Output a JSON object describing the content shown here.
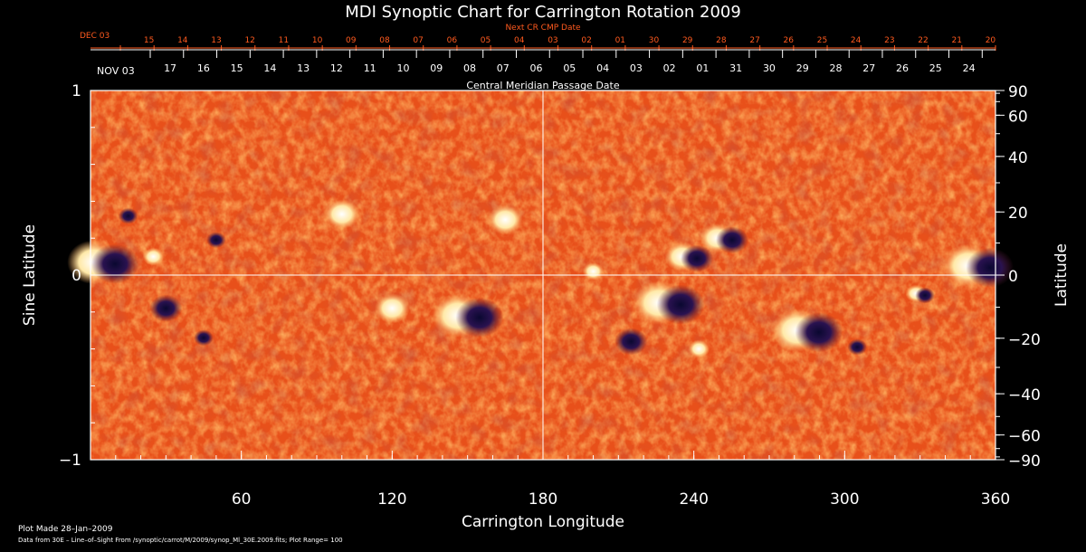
{
  "colors": {
    "background": "#000000",
    "axis": "#ffffff",
    "top_axis": "#ff5a1e",
    "field": "#e8501a"
  },
  "chart_data": {
    "type": "heatmap",
    "title": "MDI Synoptic Chart for Carrington Rotation 2009",
    "xlabel": "Carrington Longitude",
    "ylabel_left": "Sine Latitude",
    "ylabel_right": "Latitude",
    "xlim": [
      0,
      360
    ],
    "ylim": [
      -1,
      1
    ],
    "x_ticks": [
      60,
      120,
      180,
      240,
      300,
      360
    ],
    "y_ticks_left": [
      {
        "value": 1,
        "label": "1"
      },
      {
        "value": 0,
        "label": "0"
      },
      {
        "value": -1,
        "label": "−1"
      }
    ],
    "y_ticks_right": [
      90,
      60,
      40,
      20,
      0,
      -20,
      -40,
      -60,
      -90
    ],
    "y_right_labels": {
      "90": "90",
      "60": "60",
      "40": "40",
      "20": "20",
      "0": "0",
      "-20": "−20",
      "-40": "−40",
      "-60": "−60",
      "-90": "−90"
    },
    "center_meridian": 180,
    "top_axis_title": "Next CR CMP Date",
    "top_axis_start_label": "DEC 03",
    "top_axis_dates": [
      "15",
      "14",
      "13",
      "12",
      "11",
      "10",
      "09",
      "08",
      "07",
      "06",
      "05",
      "04",
      "03",
      "02",
      "01",
      "30",
      "29",
      "28",
      "27",
      "26",
      "25",
      "24",
      "23",
      "22",
      "21",
      "20"
    ],
    "bottom_axis_title": "Central Meridian Passage Date",
    "bottom_axis_start_label": "NOV 03",
    "bottom_axis_dates": [
      "17",
      "16",
      "15",
      "14",
      "13",
      "12",
      "11",
      "10",
      "09",
      "08",
      "07",
      "06",
      "05",
      "04",
      "03",
      "02",
      "01",
      "31",
      "30",
      "29",
      "28",
      "27",
      "26",
      "25",
      "24"
    ],
    "regions": [
      {
        "lon": 5,
        "sinlat": 0.07,
        "polarity": "mixed",
        "size": "large"
      },
      {
        "lon": 15,
        "sinlat": 0.33,
        "polarity": "negative",
        "size": "small"
      },
      {
        "lon": 25,
        "sinlat": 0.1,
        "polarity": "positive",
        "size": "small"
      },
      {
        "lon": 30,
        "sinlat": -0.17,
        "polarity": "negative",
        "size": "medium"
      },
      {
        "lon": 45,
        "sinlat": -0.33,
        "polarity": "negative",
        "size": "small"
      },
      {
        "lon": 50,
        "sinlat": 0.2,
        "polarity": "negative",
        "size": "small"
      },
      {
        "lon": 100,
        "sinlat": 0.33,
        "polarity": "positive",
        "size": "medium"
      },
      {
        "lon": 120,
        "sinlat": -0.18,
        "polarity": "positive",
        "size": "medium"
      },
      {
        "lon": 150,
        "sinlat": -0.22,
        "polarity": "mixed",
        "size": "large"
      },
      {
        "lon": 165,
        "sinlat": 0.3,
        "polarity": "positive",
        "size": "medium"
      },
      {
        "lon": 200,
        "sinlat": 0.02,
        "polarity": "positive",
        "size": "small"
      },
      {
        "lon": 215,
        "sinlat": -0.35,
        "polarity": "negative",
        "size": "medium"
      },
      {
        "lon": 230,
        "sinlat": -0.15,
        "polarity": "mixed",
        "size": "large"
      },
      {
        "lon": 238,
        "sinlat": 0.1,
        "polarity": "mixed",
        "size": "medium"
      },
      {
        "lon": 252,
        "sinlat": 0.2,
        "polarity": "mixed",
        "size": "medium"
      },
      {
        "lon": 242,
        "sinlat": -0.4,
        "polarity": "positive",
        "size": "small"
      },
      {
        "lon": 285,
        "sinlat": -0.3,
        "polarity": "mixed",
        "size": "large"
      },
      {
        "lon": 305,
        "sinlat": -0.38,
        "polarity": "negative",
        "size": "small"
      },
      {
        "lon": 330,
        "sinlat": -0.1,
        "polarity": "mixed",
        "size": "small"
      },
      {
        "lon": 353,
        "sinlat": 0.05,
        "polarity": "mixed",
        "size": "large"
      }
    ]
  },
  "footer": {
    "plot_made": "Plot Made 28–Jan–2009",
    "data_source": "Data from 30E – Line–of–Sight From /synoptic/carrot/M/2009/synop_Ml_30E.2009.fits; Plot Range=  100"
  }
}
